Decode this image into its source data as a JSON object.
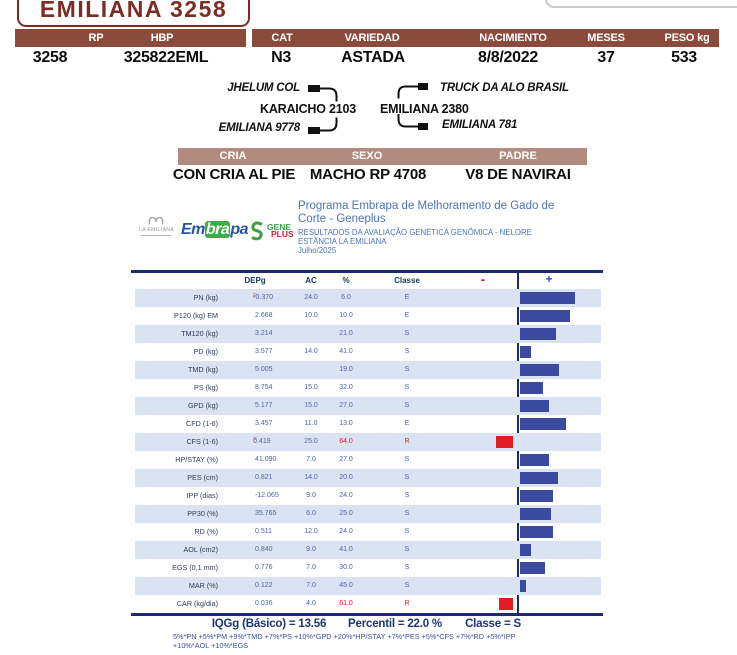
{
  "animal": {
    "title": "EMILIANA 3258",
    "fields": [
      {
        "label": "RP",
        "value": "3258"
      },
      {
        "label": "HBP",
        "value": "325822EML"
      },
      {
        "label": "CAT",
        "value": "N3"
      },
      {
        "label": "VARIEDAD",
        "value": "ASTADA"
      },
      {
        "label": "NACIMIENTO",
        "value": "8/8/2022"
      },
      {
        "label": "MESES",
        "value": "37"
      },
      {
        "label": "PESO kg",
        "value": "533"
      }
    ]
  },
  "pedigree": {
    "sire_sire": "JHELUM COL",
    "sire": "KARAICHO 2103",
    "sire_dam": "EMILIANA 9778",
    "dam_sire": "TRUCK DA ALO BRASIL",
    "dam": "EMILIANA 2380",
    "dam_dam": "EMILIANA 781"
  },
  "status": {
    "fields": [
      {
        "label": "CRIA",
        "value": "CON CRIA AL PIE"
      },
      {
        "label": "SEXO",
        "value": "MACHO RP 4708"
      },
      {
        "label": "PADRE",
        "value": "V8 DE NAVIRAI"
      }
    ]
  },
  "program": {
    "logo_laemiliana": "LA EMILIANA",
    "logo_embrapa_pre": "Em",
    "logo_embrapa_mid": "bra",
    "logo_embrapa_post": "pa",
    "logo_gene": "GENE",
    "logo_plus": "PLUS",
    "title_line1": "Programa Embrapa de Melhoramento de Gado de",
    "title_line2": "Corte - Geneplus",
    "subtitle1": "RESULTADOS DA AVALIAÇÃO GENÉTICA GENÔMICA - NELORE",
    "subtitle2": "ESTÂNCIA LA EMILIANA",
    "date": "Julho/2025"
  },
  "chart_data": {
    "type": "bar",
    "headers": {
      "depg": "DEPg",
      "ac": "AC",
      "pct": "%",
      "classe": "Classe",
      "minus": "-",
      "plus": "+"
    },
    "axis_note": "bar length = |50 - percentile| ; bars left of axis (red) when percentile > 50",
    "rows": [
      {
        "label": "PN (kg)",
        "depg": "-0.370",
        "sup": true,
        "ac": "24.0",
        "pct": "6.0",
        "classe": "E"
      },
      {
        "label": "P120 (kg) EM",
        "depg": "2.668",
        "sup": false,
        "ac": "10.0",
        "pct": "10.0",
        "classe": "E"
      },
      {
        "label": "TM120 (kg)",
        "depg": "3.214",
        "sup": false,
        "ac": "",
        "pct": "21.0",
        "classe": "S"
      },
      {
        "label": "PD (kg)",
        "depg": "3.577",
        "sup": false,
        "ac": "14.0",
        "pct": "41.0",
        "classe": "S"
      },
      {
        "label": "TMD (kg)",
        "depg": "5.005",
        "sup": false,
        "ac": "",
        "pct": "19.0",
        "classe": "S"
      },
      {
        "label": "PS (kg)",
        "depg": "8.754",
        "sup": false,
        "ac": "15.0",
        "pct": "32.0",
        "classe": "S"
      },
      {
        "label": "GPD (kg)",
        "depg": "5.177",
        "sup": false,
        "ac": "15.0",
        "pct": "27.0",
        "classe": "S"
      },
      {
        "label": "CFD (1-6)",
        "depg": "3.457",
        "sup": false,
        "ac": "11.0",
        "pct": "13.0",
        "classe": "E"
      },
      {
        "label": "CFS (1-6)",
        "depg": "0.419",
        "sup": true,
        "ac": "25.0",
        "pct": "64.0",
        "classe": "R"
      },
      {
        "label": "HP/STAY (%)",
        "depg": "41.090",
        "sup": false,
        "ac": "7.0",
        "pct": "27.0",
        "classe": "S"
      },
      {
        "label": "PES (cm)",
        "depg": "0.821",
        "sup": false,
        "ac": "14.0",
        "pct": "20.0",
        "classe": "S"
      },
      {
        "label": "IPP (dias)",
        "depg": "-12.065",
        "sup": false,
        "ac": "9.0",
        "pct": "24.0",
        "classe": "S"
      },
      {
        "label": "PP30 (%)",
        "depg": "35.765",
        "sup": false,
        "ac": "6.0",
        "pct": "25.0",
        "classe": "S"
      },
      {
        "label": "RD (%)",
        "depg": "0.511",
        "sup": false,
        "ac": "12.0",
        "pct": "24.0",
        "classe": "S"
      },
      {
        "label": "AOL (cm2)",
        "depg": "0.840",
        "sup": false,
        "ac": "9.0",
        "pct": "41.0",
        "classe": "S"
      },
      {
        "label": "EGS (0,1 mm)",
        "depg": "0.776",
        "sup": false,
        "ac": "7.0",
        "pct": "30.0",
        "classe": "S"
      },
      {
        "label": "MAR (%)",
        "depg": "0.122",
        "sup": false,
        "ac": "7.0",
        "pct": "45.0",
        "classe": "S"
      },
      {
        "label": "CAR (kg/dia)",
        "depg": "0.036",
        "sup": false,
        "ac": "4.0",
        "pct": "61.0",
        "classe": "R"
      }
    ]
  },
  "summary": {
    "iqgg": "IQGg (Básico) = 13.56",
    "percentil": "Percentil = 22.0 %",
    "classe": "Classe = S"
  },
  "footnote": {
    "line1": "5%*PN +5%*PM +9%*TMD +7%*PS +10%*GPD +20%*HP/STAY +7%*PES +5%*CFS +7%*RD +5%*IPP",
    "line2": "+10%*AOL +10%*EGS"
  },
  "colors": {
    "maroon": "#8a4a3c",
    "maroon_dark": "#7b2d24",
    "rosy": "#b18b7e",
    "navy": "#1c2a75",
    "bar_blue": "#3c49a0",
    "row_blue": "#dae3f1",
    "text_blue": "#4f63ae",
    "red": "#e01b22",
    "program_blue": "#4d74b5"
  }
}
